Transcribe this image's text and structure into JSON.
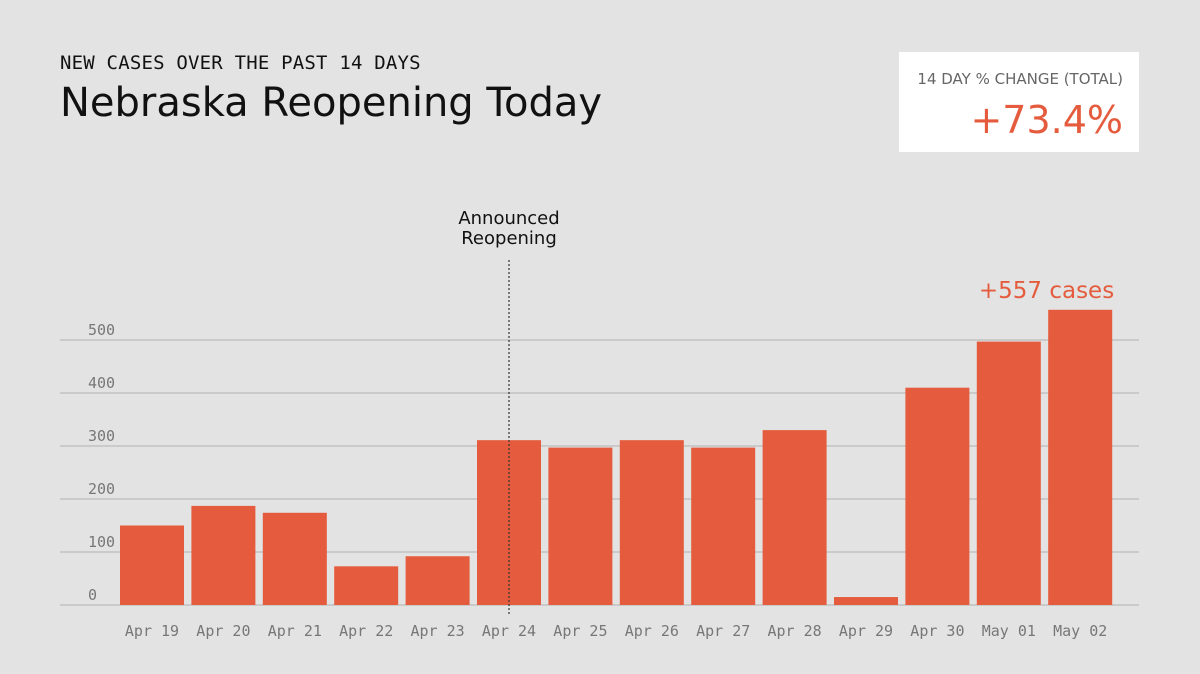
{
  "header": {
    "subtitle": "NEW CASES OVER THE PAST 14 DAYS",
    "title": "Nebraska Reopening Today"
  },
  "stat_box": {
    "label": "14 DAY % CHANGE (TOTAL)",
    "value": "+73.4%"
  },
  "colors": {
    "bar": "#e45c3d",
    "grid": "#b0b0b0",
    "background": "#e3e3e3"
  },
  "chart_data": {
    "type": "bar",
    "title": "Nebraska Reopening Today",
    "subtitle": "NEW CASES OVER THE PAST 14 DAYS",
    "categories": [
      "Apr 19",
      "Apr 20",
      "Apr 21",
      "Apr 22",
      "Apr 23",
      "Apr 24",
      "Apr 25",
      "Apr 26",
      "Apr 27",
      "Apr 28",
      "Apr 29",
      "Apr 30",
      "May 01",
      "May 02"
    ],
    "values": [
      150,
      187,
      174,
      73,
      92,
      311,
      297,
      311,
      297,
      330,
      15,
      410,
      497,
      557
    ],
    "yticks": [
      "0",
      "100",
      "200",
      "300",
      "400",
      "500"
    ],
    "ytick_values": [
      0,
      100,
      200,
      300,
      400,
      500
    ],
    "ylim": [
      0,
      557
    ],
    "grid": true,
    "annotations": [
      {
        "category": "Apr 24",
        "lines": [
          "Announced",
          "Reopening"
        ],
        "style": "dotted-vertical-line"
      }
    ],
    "peak_label": {
      "category": "May 02",
      "text": "+557 cases"
    }
  }
}
